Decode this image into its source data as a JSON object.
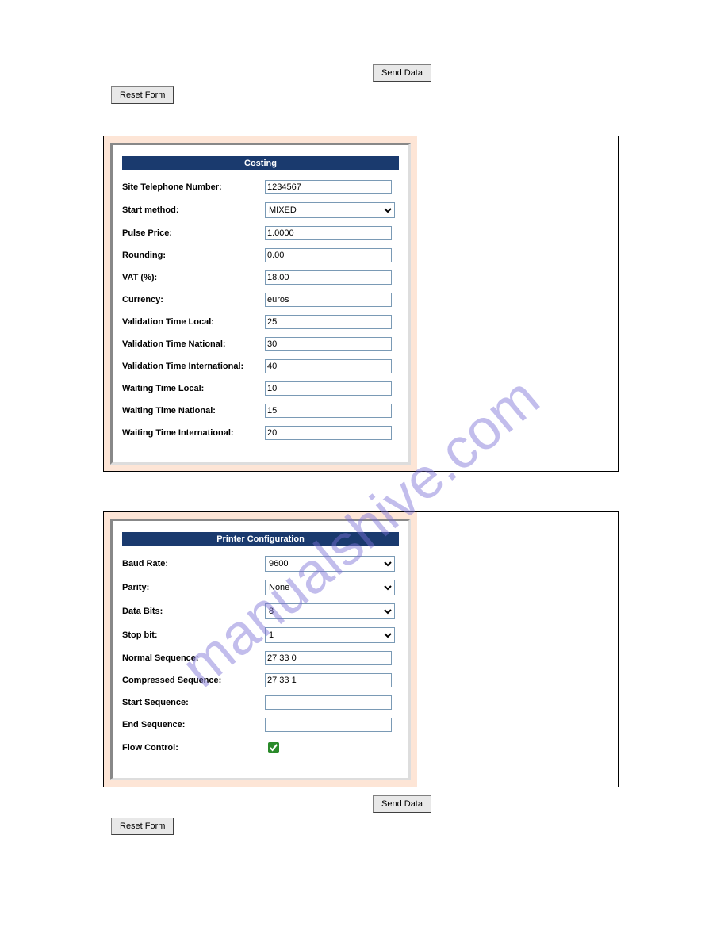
{
  "buttons": {
    "send_data": "Send Data",
    "reset_form": "Reset Form"
  },
  "costing": {
    "header": "Costing",
    "fields": {
      "site_tel": {
        "label": "Site Telephone Number:",
        "value": "1234567"
      },
      "start_method": {
        "label": "Start method:",
        "value": "MIXED"
      },
      "pulse_price": {
        "label": "Pulse Price:",
        "value": "1.0000"
      },
      "rounding": {
        "label": "Rounding:",
        "value": "0.00"
      },
      "vat": {
        "label": "VAT (%):",
        "value": "18.00"
      },
      "currency": {
        "label": "Currency:",
        "value": "euros"
      },
      "val_local": {
        "label": "Validation Time Local:",
        "value": "25"
      },
      "val_national": {
        "label": "Validation Time National:",
        "value": "30"
      },
      "val_intl": {
        "label": "Validation Time International:",
        "value": "40"
      },
      "wait_local": {
        "label": "Waiting Time Local:",
        "value": "10"
      },
      "wait_national": {
        "label": "Waiting Time National:",
        "value": "15"
      },
      "wait_intl": {
        "label": "Waiting Time International:",
        "value": "20"
      }
    }
  },
  "printer": {
    "header": "Printer Configuration",
    "fields": {
      "baud": {
        "label": "Baud Rate:",
        "value": "9600"
      },
      "parity": {
        "label": "Parity:",
        "value": "None"
      },
      "data_bits": {
        "label": "Data Bits:",
        "value": "8"
      },
      "stop_bit": {
        "label": "Stop bit:",
        "value": "1"
      },
      "normal_seq": {
        "label": "Normal Sequence:",
        "value": "27 33 0"
      },
      "compressed_seq": {
        "label": "Compressed Sequence:",
        "value": "27 33 1"
      },
      "start_seq": {
        "label": "Start Sequence:",
        "value": ""
      },
      "end_seq": {
        "label": "End Sequence:",
        "value": ""
      },
      "flow_control": {
        "label": "Flow Control:",
        "checked": true
      }
    }
  },
  "watermark": "manualshive.com",
  "colors": {
    "panel_bg": "#fde5d6",
    "header_bg": "#1a3a6e",
    "header_fg": "#ffffff",
    "input_border": "#7a9ab5",
    "watermark_color": "#7a6fd6"
  }
}
